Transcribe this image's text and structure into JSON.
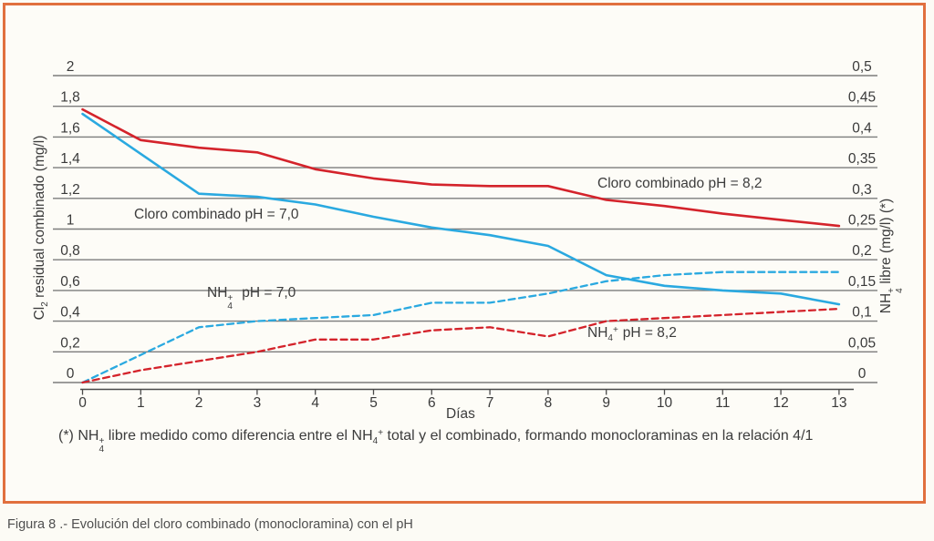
{
  "colors": {
    "red": "#d4232b",
    "blue": "#2aa9e0",
    "grid": "#7c7c7c",
    "axis": "#4a4a4a",
    "border": "#e1703e",
    "text": "#3a3a3a"
  },
  "labels": {
    "cloro_70": "Cloro combinado pH = 7,0",
    "cloro_82": "Cloro combinado pH = 8,2",
    "nh4_70": {
      "base": "NH",
      "sub": "4",
      "sup": "+",
      "rest": "pH = 7,0"
    },
    "nh4_82": {
      "base": "NH",
      "sub": "4",
      "sup": "+",
      "rest": "pH = 8,2"
    },
    "xlabel": "Días"
  },
  "axis_titles": {
    "left": {
      "base": "Cl",
      "sub": "2",
      "rest": " residual combinado (mg/l)"
    },
    "right": {
      "base": "NH",
      "sub": "4",
      "sup": "+",
      "rest": " libre (mg/l) (*)"
    }
  },
  "footnote": {
    "prefix": "(*) NH",
    "nh1_sup": "+",
    "nh1_sub": "4",
    "mid": " libre medido como diferencia entre el NH",
    "nh2_sub": "4",
    "nh2_sup": "+",
    "suffix": " total y el combinado, formando monocloraminas en la relación 4/1"
  },
  "caption": "Figura 8 .- Evolución del cloro combinado (monocloramina) con el pH",
  "chart_data": {
    "type": "line",
    "x": [
      0,
      1,
      2,
      3,
      4,
      5,
      6,
      7,
      8,
      9,
      10,
      11,
      12,
      13
    ],
    "xlabel": "Días",
    "x_tick_labels": [
      "0",
      "1",
      "2",
      "3",
      "4",
      "5",
      "6",
      "7",
      "8",
      "9",
      "10",
      "11",
      "12",
      "13"
    ],
    "grid": "horizontal",
    "left_axis": {
      "label": "Cl2 residual combinado (mg/l)",
      "range": [
        0,
        2
      ],
      "tick_labels": [
        "2",
        "1,8",
        "1,6",
        "1,4",
        "1,2",
        "1",
        "0,8",
        "0,6",
        "0,4",
        "0,2",
        "0"
      ]
    },
    "right_axis": {
      "label": "NH4+ libre (mg/l) (*)",
      "range": [
        0,
        0.5
      ],
      "tick_labels": [
        "0,5",
        "0,45",
        "0,4",
        "0,35",
        "0,3",
        "0,25",
        "0,2",
        "0,15",
        "0,1",
        "0,05",
        "0"
      ],
      "left_equivalent_factor": 4
    },
    "series": [
      {
        "name": "Cloro combinado pH = 8,2",
        "axis": "left",
        "line": "solid",
        "color": "#d4232b",
        "values": [
          1.78,
          1.58,
          1.53,
          1.5,
          1.39,
          1.33,
          1.29,
          1.28,
          1.28,
          1.19,
          1.15,
          1.1,
          1.06,
          1.02
        ]
      },
      {
        "name": "Cloro combinado pH = 7,0",
        "axis": "left",
        "line": "solid",
        "color": "#2aa9e0",
        "values": [
          1.75,
          1.49,
          1.23,
          1.21,
          1.16,
          1.08,
          1.01,
          0.96,
          0.89,
          0.7,
          0.63,
          0.6,
          0.58,
          0.51
        ]
      },
      {
        "name": "NH4+ pH = 7,0",
        "axis": "right",
        "line": "dashed",
        "color": "#2aa9e0",
        "values": [
          0,
          0.045,
          0.09,
          0.1,
          0.105,
          0.11,
          0.13,
          0.13,
          0.145,
          0.165,
          0.175,
          0.18,
          0.18,
          0.18
        ]
      },
      {
        "name": "NH4+ pH = 8,2",
        "axis": "right",
        "line": "dashed",
        "color": "#d4232b",
        "values": [
          0,
          0.02,
          0.035,
          0.05,
          0.07,
          0.07,
          0.085,
          0.09,
          0.075,
          0.1,
          0.105,
          0.11,
          0.115,
          0.12
        ]
      }
    ]
  }
}
